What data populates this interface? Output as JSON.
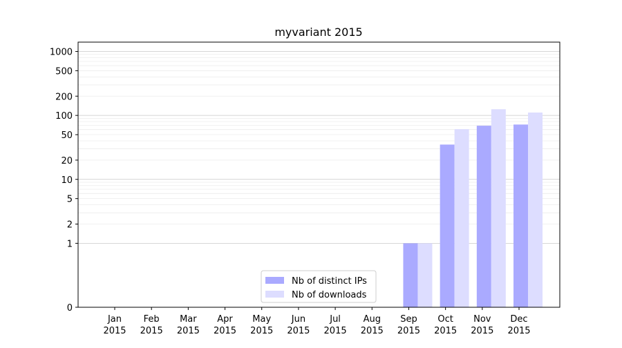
{
  "chart_data": {
    "type": "bar",
    "title": "myvariant 2015",
    "xlabel": "",
    "ylabel": "",
    "yscale": "symlog",
    "ylim": [
      0,
      1400
    ],
    "grid": "horizontal",
    "legend_position": "lower-center",
    "categories": [
      [
        "Jan",
        "2015"
      ],
      [
        "Feb",
        "2015"
      ],
      [
        "Mar",
        "2015"
      ],
      [
        "Apr",
        "2015"
      ],
      [
        "May",
        "2015"
      ],
      [
        "Jun",
        "2015"
      ],
      [
        "Jul",
        "2015"
      ],
      [
        "Aug",
        "2015"
      ],
      [
        "Sep",
        "2015"
      ],
      [
        "Oct",
        "2015"
      ],
      [
        "Nov",
        "2015"
      ],
      [
        "Dec",
        "2015"
      ]
    ],
    "y_ticks": [
      0,
      1,
      2,
      5,
      10,
      20,
      50,
      100,
      200,
      500,
      1000
    ],
    "series": [
      {
        "name": "Nb of distinct IPs",
        "color": "#aaaaff",
        "values": [
          0,
          0,
          0,
          0,
          0,
          0,
          0,
          0,
          1,
          35,
          69,
          72
        ]
      },
      {
        "name": "Nb of downloads",
        "color": "#ddddff",
        "values": [
          0,
          0,
          0,
          0,
          0,
          0,
          0,
          0,
          1,
          61,
          125,
          111
        ]
      }
    ]
  }
}
